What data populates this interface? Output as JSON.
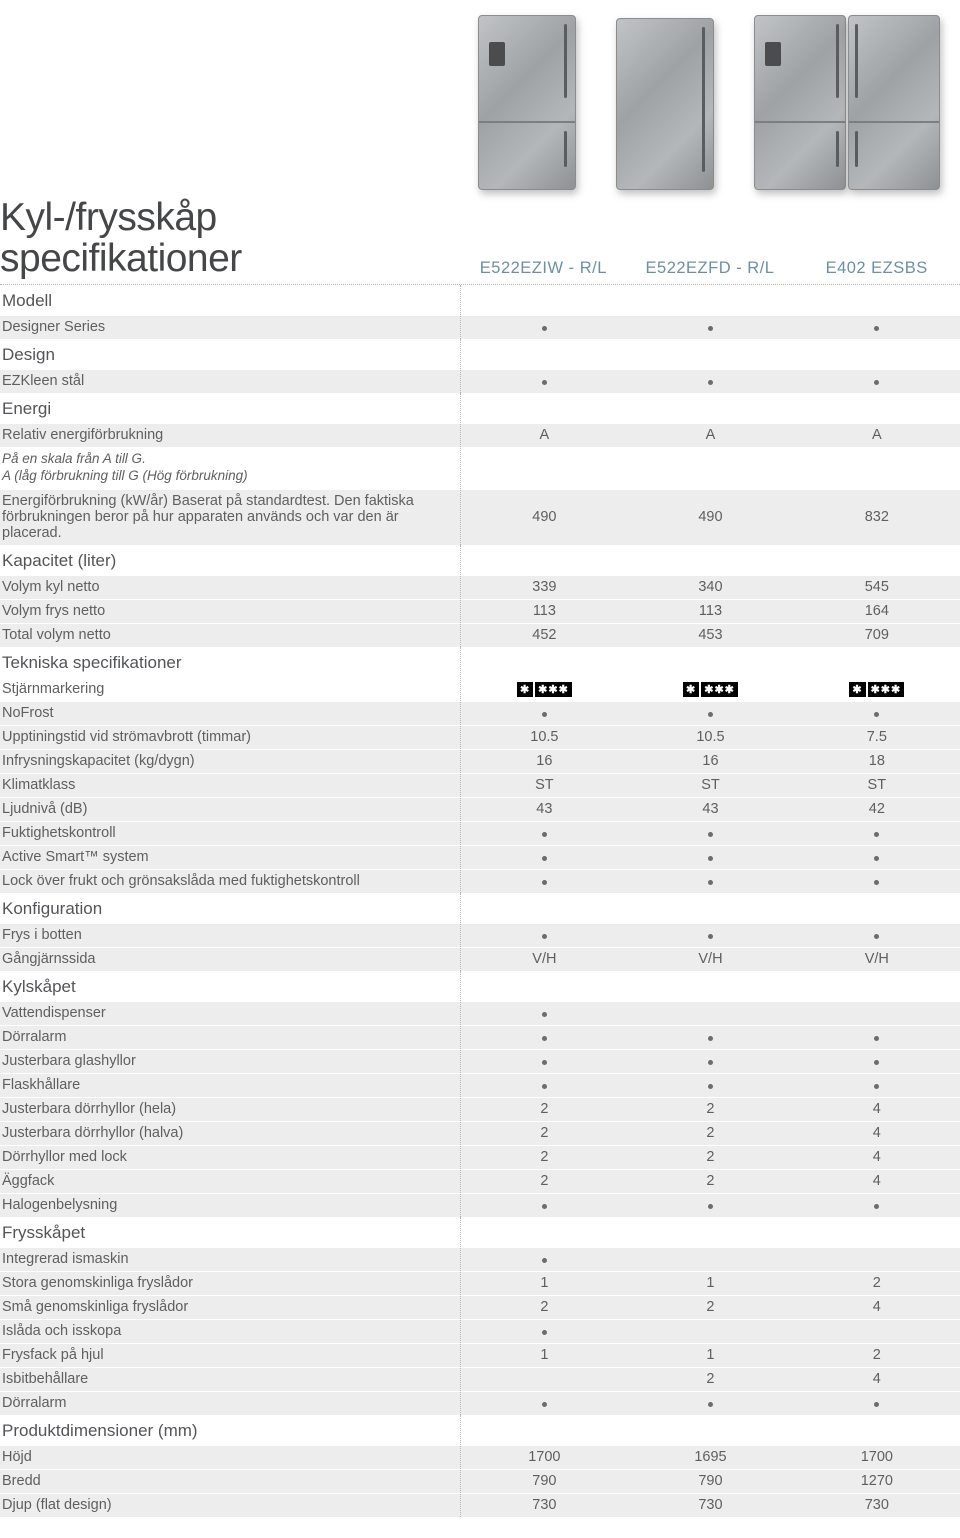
{
  "title_line1": "Kyl-/frysskåp",
  "title_line2": "specifikationer",
  "models": [
    "E522EZIW - R/L",
    "E522EZFD - R/L",
    "E402 EZSBS"
  ],
  "colors": {
    "section_text": "#525457",
    "body_text": "#5f5f5f",
    "model_header": "#6d8fa5",
    "row_band": "#ededed",
    "dot": "#6a6c6e"
  },
  "groups": [
    {
      "name": "Modell",
      "rows": [
        {
          "label": "Designer Series",
          "vals": [
            "•",
            "•",
            "•"
          ],
          "band": true,
          "italic": false
        }
      ]
    },
    {
      "name": "Design",
      "rows": [
        {
          "label": "EZKleen stål",
          "vals": [
            "•",
            "•",
            "•"
          ],
          "band": true
        }
      ]
    },
    {
      "name": "Energi",
      "rows": [
        {
          "label": "Relativ energiförbrukning",
          "vals": [
            "A",
            "A",
            "A"
          ],
          "band": true
        },
        {
          "label": "På en skala från A till G.\nA (låg förbrukning till G (Hög förbrukning)",
          "vals": [
            "",
            "",
            ""
          ],
          "band": false,
          "italic": true
        },
        {
          "label": "Energiförbrukning (kW/år) Baserat på standardtest. Den faktiska förbrukningen beror på hur apparaten används och var den är placerad.",
          "vals": [
            "490",
            "490",
            "832"
          ],
          "band": true
        }
      ]
    },
    {
      "name": "Kapacitet (liter)",
      "rows": [
        {
          "label": "Volym kyl netto",
          "vals": [
            "339",
            "340",
            "545"
          ],
          "band": true
        },
        {
          "label": "Volym frys netto",
          "vals": [
            "113",
            "113",
            "164"
          ],
          "band": true
        },
        {
          "label": "Total volym netto",
          "vals": [
            "452",
            "453",
            "709"
          ],
          "band": true
        }
      ]
    },
    {
      "name": "Tekniska specifikationer",
      "rows": [
        {
          "label": "Stjärnmarkering",
          "vals": [
            "★★★★",
            "★★★★",
            "★★★★"
          ],
          "band": false,
          "type": "star"
        },
        {
          "label": "NoFrost",
          "vals": [
            "•",
            "•",
            "•"
          ],
          "band": true
        },
        {
          "label": "Upptiningstid vid strömavbrott (timmar)",
          "vals": [
            "10.5",
            "10.5",
            "7.5"
          ],
          "band": true
        },
        {
          "label": "Infrysningskapacitet (kg/dygn)",
          "vals": [
            "16",
            "16",
            "18"
          ],
          "band": true
        },
        {
          "label": "Klimatklass",
          "vals": [
            "ST",
            "ST",
            "ST"
          ],
          "band": true
        },
        {
          "label": "Ljudnivå (dB)",
          "vals": [
            "43",
            "43",
            "42"
          ],
          "band": true
        },
        {
          "label": "Fuktighetskontroll",
          "vals": [
            "•",
            "•",
            "•"
          ],
          "band": true
        },
        {
          "label": "Active Smart™ system",
          "vals": [
            "•",
            "•",
            "•"
          ],
          "band": true
        },
        {
          "label": "Lock över frukt och grönsakslåda med fuktighetskontroll",
          "vals": [
            "•",
            "•",
            "•"
          ],
          "band": true
        }
      ]
    },
    {
      "name": "Konfiguration",
      "rows": [
        {
          "label": "Frys i botten",
          "vals": [
            "•",
            "•",
            "•"
          ],
          "band": true
        },
        {
          "label": "Gångjärnssida",
          "vals": [
            "V/H",
            "V/H",
            "V/H"
          ],
          "band": true
        }
      ]
    },
    {
      "name": "Kylskåpet",
      "rows": [
        {
          "label": "Vattendispenser",
          "vals": [
            "•",
            "",
            ""
          ],
          "band": true
        },
        {
          "label": "Dörralarm",
          "vals": [
            "•",
            "•",
            "•"
          ],
          "band": true
        },
        {
          "label": "Justerbara glashyllor",
          "vals": [
            "•",
            "•",
            "•"
          ],
          "band": true
        },
        {
          "label": "Flaskhållare",
          "vals": [
            "•",
            "•",
            "•"
          ],
          "band": true
        },
        {
          "label": "Justerbara dörrhyllor (hela)",
          "vals": [
            "2",
            "2",
            "4"
          ],
          "band": true
        },
        {
          "label": "Justerbara dörrhyllor (halva)",
          "vals": [
            "2",
            "2",
            "4"
          ],
          "band": true
        },
        {
          "label": "Dörrhyllor med lock",
          "vals": [
            "2",
            "2",
            "4"
          ],
          "band": true
        },
        {
          "label": "Äggfack",
          "vals": [
            "2",
            "2",
            "4"
          ],
          "band": true
        },
        {
          "label": "Halogenbelysning",
          "vals": [
            "•",
            "•",
            "•"
          ],
          "band": true
        }
      ]
    },
    {
      "name": "Frysskåpet",
      "rows": [
        {
          "label": "Integrerad ismaskin",
          "vals": [
            "•",
            "",
            ""
          ],
          "band": true
        },
        {
          "label": "Stora genomskinliga fryslådor",
          "vals": [
            "1",
            "1",
            "2"
          ],
          "band": true
        },
        {
          "label": "Små genomskinliga fryslådor",
          "vals": [
            "2",
            "2",
            "4"
          ],
          "band": true
        },
        {
          "label": "Islåda och isskopa",
          "vals": [
            "•",
            "",
            ""
          ],
          "band": true
        },
        {
          "label": "Frysfack på hjul",
          "vals": [
            "1",
            "1",
            "2"
          ],
          "band": true
        },
        {
          "label": "Isbitbehållare",
          "vals": [
            "",
            "2",
            "4"
          ],
          "band": true
        },
        {
          "label": "Dörralarm",
          "vals": [
            "•",
            "•",
            "•"
          ],
          "band": true
        }
      ]
    },
    {
      "name": "Produktdimensioner (mm)",
      "rows": [
        {
          "label": "Höjd",
          "vals": [
            "1700",
            "1695",
            "1700"
          ],
          "band": true
        },
        {
          "label": "Bredd",
          "vals": [
            "790",
            "790",
            "1270"
          ],
          "band": true
        },
        {
          "label": "Djup (flat design)",
          "vals": [
            "730",
            "730",
            "730"
          ],
          "band": true
        }
      ]
    }
  ]
}
